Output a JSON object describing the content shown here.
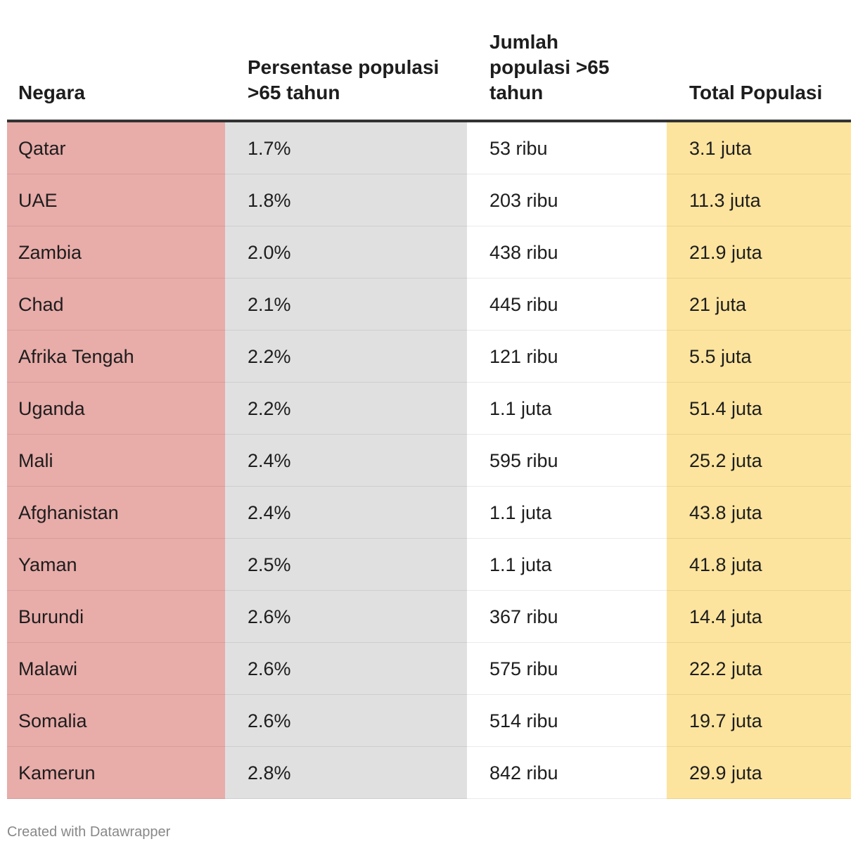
{
  "chart_data": {
    "type": "table",
    "columns": [
      "Negara",
      "Persentase populasi >65 tahun",
      "Jumlah populasi >65 tahun",
      "Total Populasi"
    ],
    "rows": [
      [
        "Qatar",
        "1.7%",
        "53 ribu",
        "3.1 juta"
      ],
      [
        "UAE",
        "1.8%",
        "203 ribu",
        "11.3 juta"
      ],
      [
        "Zambia",
        "2.0%",
        "438 ribu",
        "21.9 juta"
      ],
      [
        "Chad",
        "2.1%",
        "445 ribu",
        "21 juta"
      ],
      [
        "Afrika Tengah",
        "2.2%",
        "121 ribu",
        "5.5 juta"
      ],
      [
        "Uganda",
        "2.2%",
        "1.1 juta",
        "51.4 juta"
      ],
      [
        "Mali",
        "2.4%",
        "595 ribu",
        "25.2 juta"
      ],
      [
        "Afghanistan",
        "2.4%",
        "1.1 juta",
        "43.8 juta"
      ],
      [
        "Yaman",
        "2.5%",
        "1.1 juta",
        "41.8 juta"
      ],
      [
        "Burundi",
        "2.6%",
        "367 ribu",
        "14.4 juta"
      ],
      [
        "Malawi",
        "2.6%",
        "575 ribu",
        "22.2 juta"
      ],
      [
        "Somalia",
        "2.6%",
        "514 ribu",
        "19.7 juta"
      ],
      [
        "Kamerun",
        "2.8%",
        "842 ribu",
        "29.9 juta"
      ]
    ],
    "column_colors": [
      "#e8aca9",
      "#e0e0e0",
      "#ffffff",
      "#fde49e"
    ]
  },
  "footer": {
    "credit": "Created with Datawrapper"
  }
}
